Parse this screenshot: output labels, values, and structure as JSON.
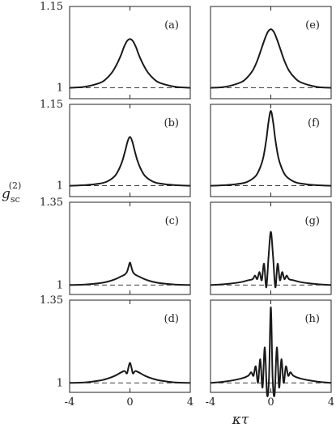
{
  "chart_data": {
    "type": "line",
    "ylabel": "g_sc^(2)",
    "ylabel_base": "g",
    "ylabel_sub": "sc",
    "ylabel_sup": "(2)",
    "xlabel": "κτ",
    "xlim": [
      -4,
      4
    ],
    "x_ticks": [
      -4,
      0,
      4
    ],
    "x_tick_labels": [
      "-4",
      "0",
      "4"
    ],
    "rows": [
      {
        "ylim": [
          0.98,
          1.15
        ],
        "y_tick_labels": [
          "1",
          "1.15"
        ],
        "y_ticks": [
          1,
          1.15
        ]
      },
      {
        "ylim": [
          0.98,
          1.15
        ],
        "y_tick_labels": [
          "1",
          "1.15"
        ],
        "y_ticks": [
          1,
          1.15
        ]
      },
      {
        "ylim": [
          0.96,
          1.35
        ],
        "y_tick_labels": [
          "1",
          "1.35"
        ],
        "y_ticks": [
          1,
          1.35
        ]
      },
      {
        "ylim": [
          0.96,
          1.35
        ],
        "y_tick_labels": [
          "1",
          "1.35"
        ],
        "y_ticks": [
          1,
          1.35
        ]
      }
    ],
    "reference_line_y": 1,
    "panels": [
      {
        "label": "(a)",
        "row": 0,
        "col": 0,
        "x": [
          -4,
          -3,
          -2,
          -1.6,
          -1.2,
          -0.9,
          -0.6,
          -0.4,
          -0.2,
          0,
          0.2,
          0.4,
          0.6,
          0.9,
          1.2,
          1.6,
          2,
          3,
          4
        ],
        "y": [
          1.0,
          1.002,
          1.009,
          1.016,
          1.028,
          1.042,
          1.06,
          1.075,
          1.086,
          1.09,
          1.086,
          1.075,
          1.06,
          1.042,
          1.028,
          1.016,
          1.009,
          1.002,
          1.0
        ]
      },
      {
        "label": "(e)",
        "row": 0,
        "col": 1,
        "x": [
          -4,
          -3,
          -2,
          -1.6,
          -1.2,
          -0.9,
          -0.6,
          -0.4,
          -0.2,
          0,
          0.2,
          0.4,
          0.6,
          0.9,
          1.2,
          1.6,
          2,
          3,
          4
        ],
        "y": [
          1.0,
          1.002,
          1.01,
          1.018,
          1.032,
          1.05,
          1.074,
          1.09,
          1.103,
          1.108,
          1.103,
          1.09,
          1.074,
          1.05,
          1.032,
          1.018,
          1.01,
          1.002,
          1.0
        ]
      },
      {
        "label": "(b)",
        "row": 1,
        "col": 0,
        "x": [
          -4,
          -3,
          -2,
          -1.5,
          -1,
          -0.7,
          -0.5,
          -0.3,
          -0.15,
          0,
          0.15,
          0.3,
          0.5,
          0.7,
          1,
          1.5,
          2,
          3,
          4
        ],
        "y": [
          1.0,
          1.001,
          1.004,
          1.008,
          1.018,
          1.032,
          1.046,
          1.066,
          1.082,
          1.09,
          1.082,
          1.066,
          1.046,
          1.032,
          1.018,
          1.008,
          1.004,
          1.001,
          1.0
        ]
      },
      {
        "label": "(f)",
        "row": 1,
        "col": 1,
        "x": [
          -4,
          -3,
          -2,
          -1.5,
          -1,
          -0.7,
          -0.5,
          -0.3,
          -0.15,
          0,
          0.15,
          0.3,
          0.5,
          0.7,
          1,
          1.5,
          2,
          3,
          4
        ],
        "y": [
          1.0,
          1.001,
          1.004,
          1.008,
          1.018,
          1.034,
          1.052,
          1.085,
          1.118,
          1.138,
          1.118,
          1.085,
          1.052,
          1.034,
          1.018,
          1.008,
          1.004,
          1.001,
          1.0
        ]
      },
      {
        "label": "(c)",
        "row": 2,
        "col": 0,
        "x": [
          -4,
          -3,
          -2,
          -1.5,
          -1,
          -0.6,
          -0.35,
          -0.2,
          -0.1,
          0,
          0.1,
          0.2,
          0.35,
          0.6,
          1,
          1.5,
          2,
          3,
          4
        ],
        "y": [
          1.0,
          1.002,
          1.008,
          1.014,
          1.024,
          1.036,
          1.044,
          1.055,
          1.075,
          1.095,
          1.075,
          1.055,
          1.044,
          1.036,
          1.024,
          1.014,
          1.008,
          1.002,
          1.0
        ]
      },
      {
        "label": "(g)",
        "row": 2,
        "col": 1,
        "x": [
          -4,
          -3,
          -2,
          -1.5,
          -1.2,
          -1.05,
          -0.9,
          -0.75,
          -0.6,
          -0.45,
          -0.3,
          -0.15,
          0,
          0.15,
          0.3,
          0.45,
          0.6,
          0.75,
          0.9,
          1.05,
          1.2,
          1.5,
          2,
          3,
          4
        ],
        "y": [
          1.0,
          1.004,
          1.012,
          1.02,
          1.025,
          1.04,
          1.025,
          1.055,
          1.02,
          1.09,
          0.99,
          1.12,
          1.225,
          1.12,
          0.99,
          1.09,
          1.02,
          1.055,
          1.025,
          1.04,
          1.025,
          1.02,
          1.012,
          1.004,
          1.0
        ]
      },
      {
        "label": "(d)",
        "row": 3,
        "col": 0,
        "x": [
          -4,
          -3,
          -2,
          -1.5,
          -1,
          -0.6,
          -0.35,
          -0.2,
          -0.1,
          0,
          0.1,
          0.2,
          0.35,
          0.6,
          1,
          1.5,
          2,
          3,
          4
        ],
        "y": [
          1.0,
          1.002,
          1.01,
          1.018,
          1.03,
          1.044,
          1.05,
          1.04,
          1.065,
          1.085,
          1.065,
          1.04,
          1.05,
          1.044,
          1.03,
          1.018,
          1.01,
          1.002,
          1.0
        ]
      },
      {
        "label": "(h)",
        "row": 3,
        "col": 1,
        "x": [
          -4,
          -3,
          -2,
          -1.5,
          -1.3,
          -1.15,
          -1,
          -0.85,
          -0.7,
          -0.55,
          -0.4,
          -0.25,
          -0.12,
          0,
          0.12,
          0.25,
          0.4,
          0.55,
          0.7,
          0.85,
          1,
          1.15,
          1.3,
          1.5,
          2,
          3,
          4
        ],
        "y": [
          1.0,
          1.006,
          1.018,
          1.03,
          1.045,
          1.03,
          1.07,
          1.0,
          1.1,
          0.98,
          1.15,
          0.95,
          1.02,
          1.32,
          1.02,
          0.95,
          1.15,
          0.98,
          1.1,
          1.0,
          1.07,
          1.03,
          1.045,
          1.03,
          1.018,
          1.006,
          1.0
        ]
      }
    ]
  }
}
